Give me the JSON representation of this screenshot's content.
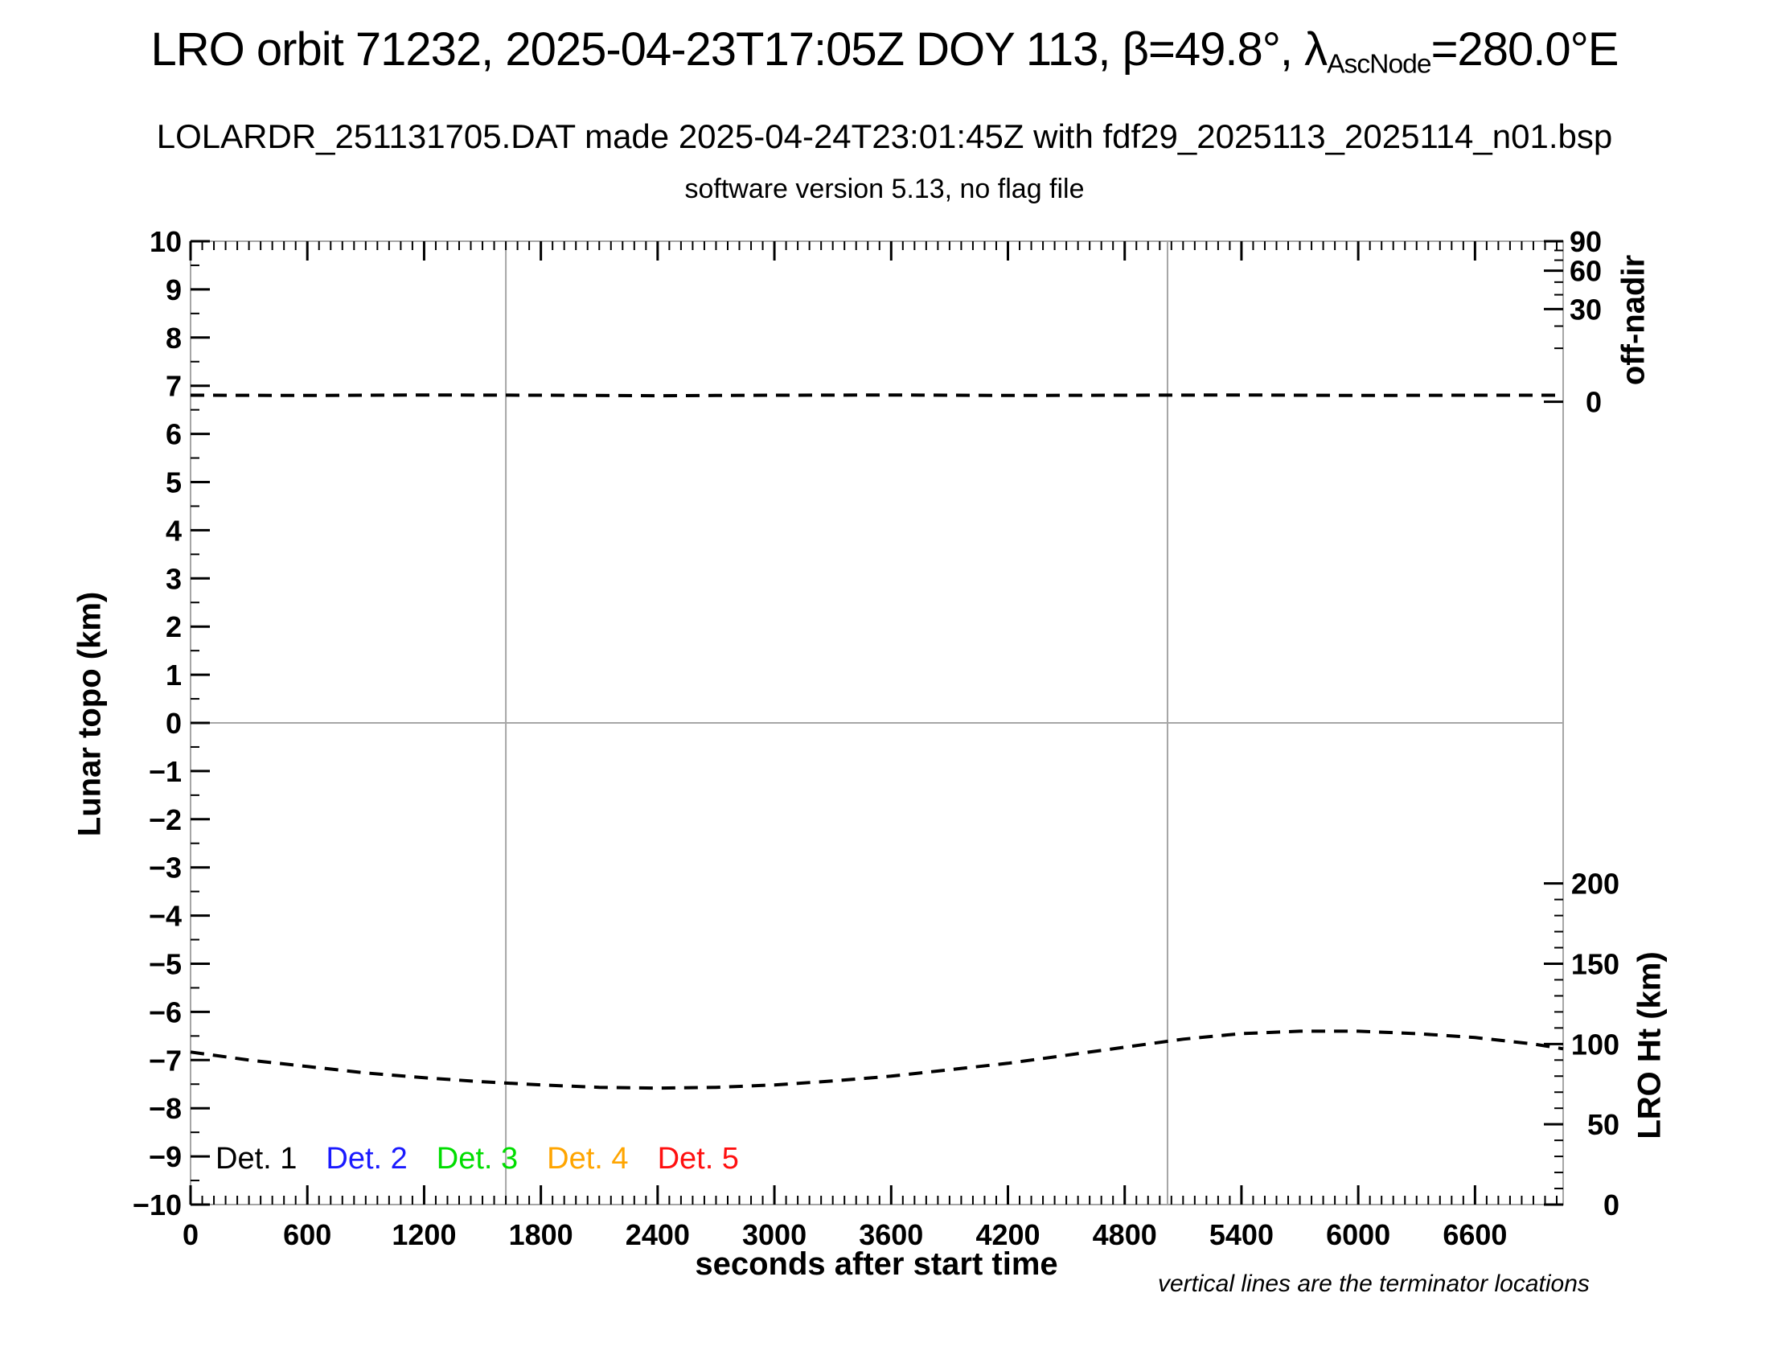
{
  "title": {
    "part1": "LRO orbit 71232, 2025-04-23T17:05Z DOY 113, β=49.8°, λ",
    "subscript": "AscNode",
    "part2": "=280.0°E"
  },
  "subtitle1": "LOLARDR_251131705.DAT made 2025-04-24T23:01:45Z with fdf29_2025113_2025114_n01.bsp",
  "subtitle2": "software version 5.13, no flag file",
  "footnote": "vertical lines are the terminator locations",
  "legend": [
    {
      "label": "Det. 1",
      "color": "#000000"
    },
    {
      "label": "Det. 2",
      "color": "#1a1aff"
    },
    {
      "label": "Det. 3",
      "color": "#00dd00"
    },
    {
      "label": "Det. 4",
      "color": "#ffa500"
    },
    {
      "label": "Det. 5",
      "color": "#ff1010"
    }
  ],
  "colors": {
    "frame_gray": "#a6a6a6",
    "tick_black": "#000000",
    "curve_black": "#000000"
  },
  "chart_data": {
    "type": "line",
    "title": "LRO orbit 71232, 2025-04-23T17:05Z DOY 113, beta=49.8deg, lambda_AscNode=280.0E",
    "xlabel": "seconds after start time",
    "ylabel_left": "Lunar topo (km)",
    "ylabel_right_top": "off-nadir",
    "ylabel_right_bottom": "LRO Ht (km)",
    "x_range": [
      0,
      7053
    ],
    "x_major_tick_labels": [
      0,
      600,
      1200,
      1800,
      2400,
      3000,
      3600,
      4200,
      4800,
      5400,
      6000,
      6600
    ],
    "x_major_step": 600,
    "x_minor_step": 60,
    "y_left_range": [
      -10,
      10
    ],
    "y_left_major_step": 1,
    "y_left_minor_step": 0.5,
    "y_left_tick_labels": [
      10,
      9,
      8,
      7,
      6,
      5,
      4,
      3,
      2,
      1,
      0,
      -1,
      -2,
      -3,
      -4,
      -5,
      -6,
      -7,
      -8,
      -9,
      -10
    ],
    "right_height_axis": {
      "tick_labels_km": [
        200,
        150,
        100,
        50,
        0
      ],
      "minor_step_km": 10,
      "km_per_left_unit": 30,
      "zero_km_at_left_value": -10,
      "range_km": [
        0,
        200
      ]
    },
    "right_offnadir_axis": {
      "tick_labels_deg": [
        90,
        60,
        30,
        0
      ],
      "minor_step_deg": 10,
      "mapping": "left_value = 6.6667 + 3.3333*sqrt(deg/90)",
      "range_deg": [
        0,
        90
      ]
    },
    "zero_line_left_value": 0,
    "terminator_lines_seconds": [
      1620,
      5020
    ],
    "grid": "terminator verticals + zero horizontal only",
    "legend_entries": [
      "Det. 1",
      "Det. 2",
      "Det. 3",
      "Det. 4",
      "Det. 5"
    ],
    "series": [
      {
        "name": "spacecraft off-nadir angle",
        "axis": "offnadir",
        "style": "dashed",
        "color": "#000000",
        "x": [
          0,
          600,
          1200,
          1800,
          2400,
          3000,
          3600,
          4200,
          4800,
          5400,
          6000,
          6600,
          7053
        ],
        "y_deg": [
          0.15,
          0.14,
          0.16,
          0.15,
          0.13,
          0.15,
          0.16,
          0.14,
          0.15,
          0.16,
          0.14,
          0.15,
          0.15
        ]
      },
      {
        "name": "LRO height above surface",
        "axis": "height",
        "style": "dashed",
        "color": "#000000",
        "x": [
          0,
          300,
          600,
          900,
          1200,
          1500,
          1800,
          2100,
          2400,
          2700,
          3000,
          3300,
          3600,
          3900,
          4200,
          4500,
          4800,
          5100,
          5400,
          5700,
          6000,
          6300,
          6600,
          6900,
          7053
        ],
        "y_km": [
          95,
          90,
          86,
          82,
          79,
          76.5,
          74.5,
          73,
          72.5,
          73,
          74.5,
          77,
          80,
          84,
          88,
          93,
          98,
          103,
          106.5,
          108,
          108,
          106.5,
          104,
          100,
          97
        ]
      }
    ]
  }
}
